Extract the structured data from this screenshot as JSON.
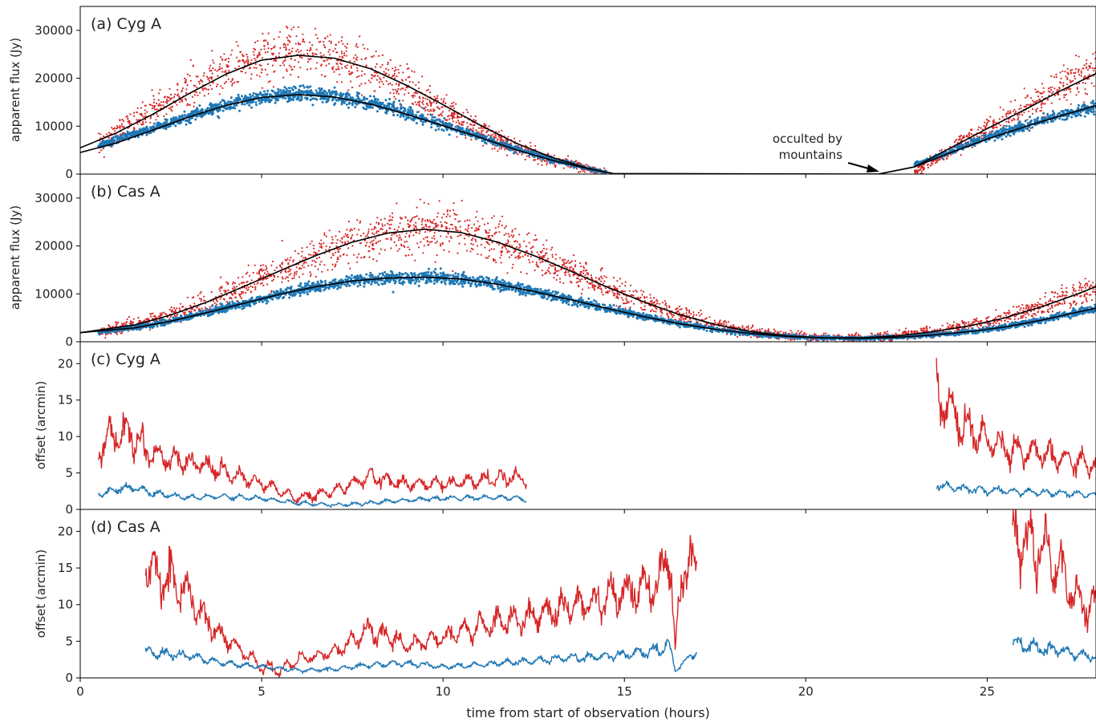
{
  "chart_data": [
    {
      "type": "scatter",
      "title": "(a) Cyg A",
      "ylabel": "apparent flux (Jy)",
      "xlim": [
        0,
        28
      ],
      "ylim": [
        0,
        35000
      ],
      "yticks": [
        0,
        10000,
        20000,
        30000
      ],
      "annotation": {
        "text_lines": [
          "occulted by",
          "mountains"
        ],
        "points_to": [
          22,
          0
        ]
      },
      "series": [
        {
          "color": "#d62728",
          "style": "points",
          "x": [
            0.5,
            1.0,
            2.0,
            3.0,
            4.0,
            5.0,
            6.0,
            7.0,
            8.0,
            9.0,
            10.0,
            11.0,
            12.0,
            13.0,
            14.0,
            14.5
          ],
          "y": [
            6000,
            9000,
            13000,
            17500,
            21500,
            24000,
            25000,
            24500,
            22000,
            18000,
            13500,
            9000,
            5500,
            3000,
            1200,
            300
          ]
        },
        {
          "color": "#d62728",
          "style": "points",
          "x": [
            23.0,
            24.0,
            25.0,
            26.0,
            27.0,
            28.0
          ],
          "y": [
            500,
            5000,
            9500,
            13500,
            18000,
            21000
          ]
        },
        {
          "color": "#1f77b4",
          "style": "points",
          "x": [
            0.5,
            1.0,
            2.0,
            3.0,
            4.0,
            5.0,
            6.0,
            7.0,
            8.0,
            9.0,
            10.0,
            11.0,
            12.0,
            13.0,
            14.0,
            14.5
          ],
          "y": [
            6000,
            7200,
            9500,
            12000,
            14300,
            16000,
            16900,
            16200,
            14800,
            12700,
            10300,
            7800,
            5300,
            3000,
            1200,
            300
          ]
        },
        {
          "color": "#1f77b4",
          "style": "points",
          "x": [
            23.0,
            24.0,
            25.0,
            26.0,
            27.0,
            28.0
          ],
          "y": [
            2000,
            4800,
            7500,
            10000,
            12300,
            14000
          ]
        },
        {
          "color": "#000000",
          "style": "line",
          "x": [
            0,
            1,
            2,
            3,
            4,
            5,
            6,
            7,
            8,
            9,
            10,
            11,
            12,
            13,
            14,
            14.7,
            21.2,
            22,
            23,
            24,
            25,
            26,
            27,
            28
          ],
          "y": [
            5500,
            8600,
            12500,
            16800,
            20800,
            23800,
            24800,
            24200,
            22000,
            18500,
            14500,
            10300,
            6500,
            3500,
            1200,
            100,
            0,
            0,
            1500,
            5500,
            9500,
            13300,
            17300,
            21000
          ]
        },
        {
          "color": "#000000",
          "style": "line",
          "x": [
            0,
            1,
            2,
            3,
            4,
            5,
            6,
            7,
            8,
            9,
            10,
            11,
            12,
            13,
            14,
            14.7,
            21.2,
            22,
            23,
            24,
            25,
            26,
            27,
            28
          ],
          "y": [
            4500,
            6500,
            9200,
            11900,
            14300,
            16000,
            16600,
            16100,
            14600,
            12500,
            10100,
            7700,
            5100,
            2900,
            1100,
            100,
            0,
            0,
            1500,
            4500,
            7300,
            9800,
            12100,
            14300
          ]
        }
      ]
    },
    {
      "type": "scatter",
      "title": "(b) Cas A",
      "ylabel": "apparent flux (Jy)",
      "xlim": [
        0,
        28
      ],
      "ylim": [
        0,
        35000
      ],
      "yticks": [
        0,
        10000,
        20000,
        30000
      ],
      "series": [
        {
          "color": "#d62728",
          "style": "points",
          "x": [
            0.5,
            1.5,
            2.5,
            3.5,
            4.5,
            5.5,
            6.5,
            7.5,
            8.5,
            9.5,
            10.5,
            11.5,
            12.5,
            13.5,
            14.5,
            15.5,
            16.5,
            17.5,
            18.5,
            19.5,
            20.5,
            21.5,
            22.5,
            23.5,
            24.5,
            25.5,
            26.5,
            27.5,
            28.0
          ],
          "y": [
            2000,
            3500,
            5600,
            8300,
            11500,
            14800,
            18000,
            20800,
            22700,
            23500,
            22800,
            20800,
            18000,
            14800,
            11500,
            8400,
            5700,
            3600,
            2100,
            1200,
            800,
            800,
            1200,
            2100,
            3300,
            5000,
            7300,
            10000,
            11500
          ]
        },
        {
          "color": "#1f77b4",
          "style": "points",
          "x": [
            0.5,
            1.5,
            2.5,
            3.5,
            4.5,
            5.5,
            6.5,
            7.5,
            8.5,
            9.5,
            10.5,
            11.5,
            12.5,
            13.5,
            14.5,
            15.5,
            16.5,
            17.5,
            18.5,
            19.5,
            20.5,
            21.5,
            22.5,
            23.5,
            24.5,
            25.5,
            26.5,
            27.5,
            28.0
          ],
          "y": [
            2000,
            2900,
            4300,
            6100,
            8000,
            9900,
            11500,
            12700,
            13300,
            13500,
            13100,
            12000,
            10500,
            8800,
            7000,
            5300,
            3800,
            2600,
            1700,
            1100,
            800,
            700,
            900,
            1400,
            2100,
            3100,
            4500,
            6200,
            7000
          ]
        },
        {
          "color": "#000000",
          "style": "line",
          "x": [
            0,
            1.5,
            2.5,
            3.5,
            4.5,
            5.5,
            6.5,
            7.5,
            8.5,
            9.5,
            10.5,
            11.5,
            12.5,
            13.5,
            14.5,
            15.5,
            16.5,
            17.5,
            18.5,
            19.5,
            20.5,
            21.5,
            22.5,
            23.5,
            24.5,
            25.5,
            26.5,
            27.5,
            28.0
          ],
          "y": [
            1900,
            3500,
            5600,
            8300,
            11500,
            14800,
            18000,
            20800,
            22700,
            23500,
            22800,
            20800,
            18000,
            14800,
            11500,
            8400,
            5700,
            3600,
            2100,
            1200,
            800,
            800,
            1200,
            2100,
            3300,
            5000,
            7300,
            10000,
            11500
          ]
        },
        {
          "color": "#000000",
          "style": "line",
          "x": [
            0,
            1.5,
            2.5,
            3.5,
            4.5,
            5.5,
            6.5,
            7.5,
            8.5,
            9.5,
            10.5,
            11.5,
            12.5,
            13.5,
            14.5,
            15.5,
            16.5,
            17.5,
            18.5,
            19.5,
            20.5,
            21.5,
            22.5,
            23.5,
            24.5,
            25.5,
            26.5,
            27.5,
            28.0
          ],
          "y": [
            1900,
            2900,
            4300,
            6100,
            8000,
            9900,
            11500,
            12700,
            13300,
            13500,
            13100,
            12000,
            10500,
            8800,
            7000,
            5300,
            3800,
            2600,
            1700,
            1100,
            800,
            700,
            900,
            1400,
            2100,
            3100,
            4500,
            6200,
            7000
          ]
        }
      ]
    },
    {
      "type": "line",
      "title": "(c) Cyg A",
      "ylabel": "offset (arcmin)",
      "xlim": [
        0,
        28
      ],
      "ylim": [
        0,
        23
      ],
      "yticks": [
        0,
        5,
        10,
        15,
        20
      ],
      "series": [
        {
          "color": "#d62728",
          "x": [
            0.5,
            1.0,
            1.5,
            2.0,
            3.0,
            4.0,
            5.0,
            6.0,
            7.0,
            8.0,
            9.0,
            10.0,
            11.0,
            12.0,
            12.3
          ],
          "y": [
            8.5,
            10.5,
            10.0,
            7.5,
            6.5,
            5.0,
            3.5,
            1.5,
            2.5,
            4.5,
            3.5,
            3.5,
            4.0,
            4.5,
            4.0
          ]
        },
        {
          "color": "#d62728",
          "x": [
            23.6,
            23.8,
            24.0,
            24.5,
            25.0,
            25.5,
            26.0,
            26.5,
            27.0,
            27.5,
            28.0
          ],
          "y": [
            16.5,
            15.5,
            13.0,
            11.0,
            9.5,
            8.5,
            8.0,
            7.5,
            7.0,
            6.5,
            6.0
          ]
        },
        {
          "color": "#1f77b4",
          "x": [
            0.5,
            1.0,
            1.5,
            2.0,
            3.0,
            4.0,
            5.0,
            6.0,
            7.0,
            8.0,
            9.0,
            10.0,
            11.0,
            12.0,
            12.3
          ],
          "y": [
            2.0,
            2.8,
            3.0,
            2.2,
            1.6,
            1.8,
            1.5,
            0.9,
            0.6,
            0.9,
            1.3,
            1.5,
            1.6,
            1.6,
            1.2
          ]
        },
        {
          "color": "#1f77b4",
          "x": [
            23.6,
            24.0,
            25.0,
            26.0,
            27.0,
            28.0
          ],
          "y": [
            3.5,
            3.0,
            2.6,
            2.4,
            2.2,
            2.0
          ]
        }
      ]
    },
    {
      "type": "line",
      "title": "(d) Cas A",
      "ylabel": "offset (arcmin)",
      "xlim": [
        0,
        28
      ],
      "ylim": [
        0,
        23
      ],
      "yticks": [
        0,
        5,
        10,
        15,
        20
      ],
      "series": [
        {
          "color": "#d62728",
          "x": [
            1.8,
            2.5,
            3.0,
            3.5,
            4.0,
            4.5,
            5.0,
            5.5,
            6.0,
            7.0,
            8.0,
            9.0,
            10.0,
            11.0,
            12.0,
            13.0,
            14.0,
            15.0,
            16.0,
            16.2,
            16.4,
            16.6,
            17.0
          ],
          "y": [
            14.5,
            13.5,
            11.0,
            7.5,
            5.5,
            3.5,
            1.5,
            1.0,
            2.5,
            3.5,
            6.5,
            4.5,
            5.5,
            7.0,
            8.0,
            9.0,
            10.5,
            11.5,
            13.0,
            20.5,
            3.5,
            16.0,
            15.0
          ]
        },
        {
          "color": "#d62728",
          "x": [
            25.7,
            26.0,
            26.5,
            27.0,
            27.5,
            28.0
          ],
          "y": [
            19.5,
            18.5,
            18.0,
            15.0,
            10.5,
            9.5
          ]
        },
        {
          "color": "#1f77b4",
          "x": [
            1.8,
            3.0,
            4.0,
            5.0,
            6.0,
            7.0,
            8.0,
            9.0,
            10.0,
            11.0,
            12.0,
            13.0,
            14.0,
            15.0,
            16.0,
            16.2,
            16.4,
            17.0
          ],
          "y": [
            3.5,
            3.0,
            2.0,
            1.5,
            1.0,
            1.2,
            1.8,
            2.0,
            1.5,
            1.8,
            2.2,
            2.5,
            2.8,
            3.2,
            3.8,
            5.0,
            1.0,
            3.8
          ]
        },
        {
          "color": "#1f77b4",
          "x": [
            25.7,
            26.0,
            26.5,
            27.0,
            27.5,
            28.0
          ],
          "y": [
            5.0,
            4.5,
            4.0,
            3.8,
            3.2,
            2.8
          ]
        }
      ]
    }
  ],
  "x_axis": {
    "label": "time from start of observation (hours)",
    "ticks": [
      0,
      5,
      10,
      15,
      20,
      25
    ]
  },
  "colors": {
    "red": "#d62728",
    "blue": "#1f77b4",
    "fit": "#000000"
  }
}
